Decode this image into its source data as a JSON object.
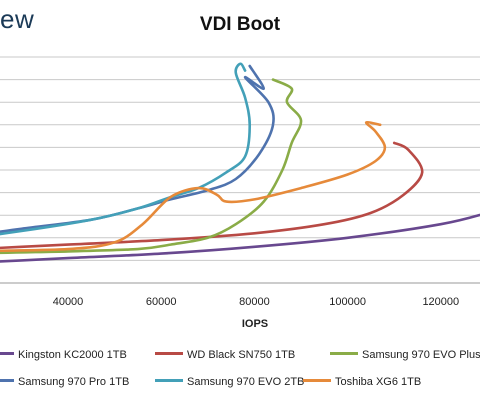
{
  "logo_text": "ew",
  "chart_data": {
    "type": "line",
    "title": "VDI Boot",
    "xlabel": "IOPS",
    "ylabel": "",
    "xlim": [
      0,
      130000
    ],
    "ylim": [
      0,
      100
    ],
    "x_ticks": [
      "40000",
      "60000",
      "80000",
      "100000",
      "120000"
    ],
    "grid": "horizontal",
    "legend_position": "bottom",
    "series": [
      {
        "name": "Kingston KC2000 1TB",
        "color": "#68488f",
        "x": [
          0,
          20000,
          40000,
          60000,
          80000,
          100000,
          120000,
          130000
        ],
        "y": [
          7,
          9,
          11,
          13,
          16,
          20,
          26,
          31
        ]
      },
      {
        "name": "WD Black SN750 1TB",
        "color": "#b84a45",
        "x": [
          0,
          20000,
          40000,
          60000,
          80000,
          95000,
          105000,
          112000,
          116000,
          113000,
          110000
        ],
        "y": [
          13,
          15,
          17,
          19,
          22,
          26,
          31,
          39,
          49,
          59,
          62
        ]
      },
      {
        "name": "Samsung 970 EVO Plus",
        "color": "#8aac47",
        "x": [
          0,
          20000,
          40000,
          55000,
          62000,
          70000,
          76000,
          82000,
          86000,
          88000,
          90000,
          87000,
          88000,
          84000
        ],
        "y": [
          11,
          13,
          14,
          15,
          17,
          20,
          26,
          36,
          50,
          62,
          72,
          80,
          86,
          90
        ]
      },
      {
        "name": "Samsung 970 Pro 1TB",
        "color": "#4f73ae",
        "x": [
          0,
          15000,
          30000,
          45000,
          55000,
          62000,
          70000,
          76000,
          81000,
          84000,
          83000,
          78000,
          82000,
          79000
        ],
        "y": [
          18,
          20,
          24,
          28,
          33,
          37,
          41,
          46,
          57,
          70,
          80,
          91,
          86,
          96
        ]
      },
      {
        "name": "Samsung 970 EVO 2TB",
        "color": "#43a0b8",
        "x": [
          0,
          15000,
          30000,
          45000,
          55000,
          62000,
          68000,
          74000,
          78000,
          79000,
          78000,
          76000,
          77000,
          78000
        ],
        "y": [
          16,
          19,
          23,
          28,
          33,
          38,
          42,
          49,
          56,
          70,
          82,
          93,
          97,
          94
        ]
      },
      {
        "name": "Toshiba XG6 1TB",
        "color": "#e68a3a",
        "x": [
          0,
          20000,
          40000,
          50000,
          56000,
          62000,
          68000,
          72000,
          74000,
          80000,
          90000,
          100000,
          106000,
          108000,
          106000,
          104000,
          107000
        ],
        "y": [
          12,
          14,
          15,
          18,
          26,
          38,
          42,
          39,
          36,
          37,
          42,
          48,
          54,
          60,
          67,
          71,
          70
        ]
      }
    ]
  }
}
